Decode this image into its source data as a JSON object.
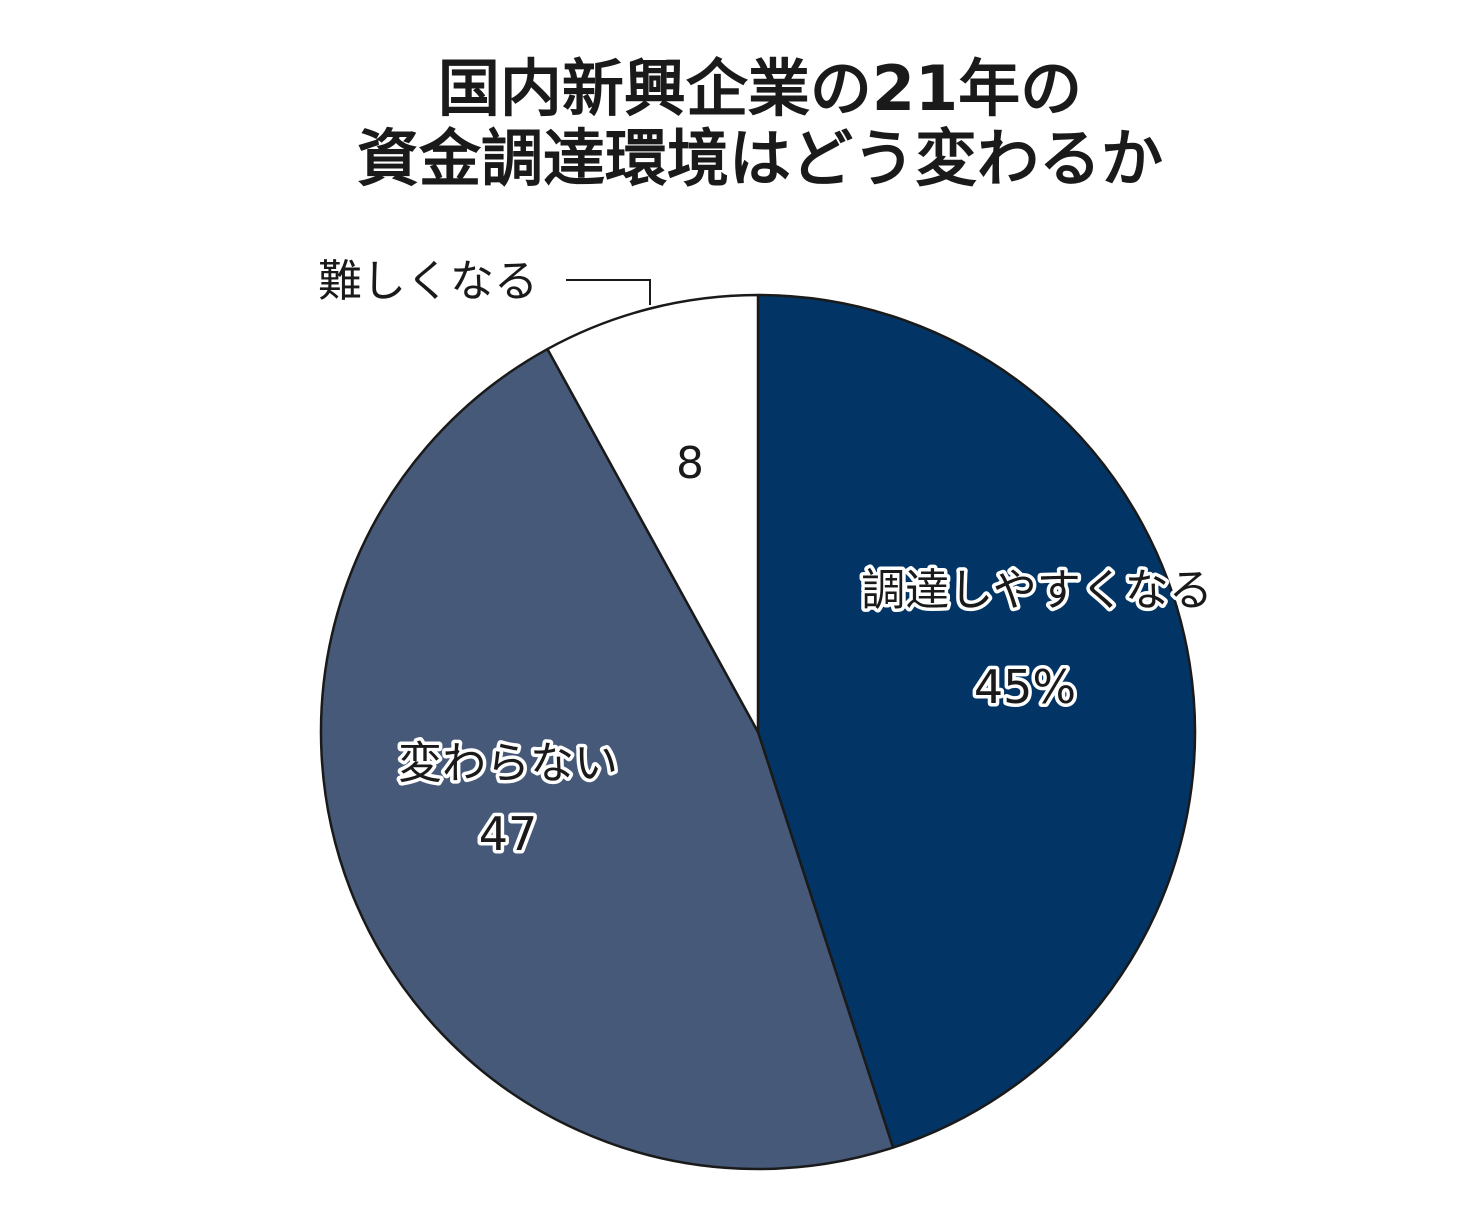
{
  "chart_data": {
    "type": "pie",
    "title_lines": [
      "国内新興企業の21年の",
      "資金調達環境はどう変わるか"
    ],
    "unit": "%",
    "start_angle_deg": 0,
    "direction": "clockwise",
    "slices": [
      {
        "label": "調達しやすくなる",
        "value": 45,
        "value_label": "45%",
        "color": "#023565"
      },
      {
        "label": "変わらない",
        "value": 47,
        "value_label": "47",
        "color": "#465978"
      },
      {
        "label": "難しくなる",
        "value": 8,
        "value_label": "8",
        "color": "#ffffff"
      }
    ],
    "outline_color": "#1a1a1a"
  }
}
